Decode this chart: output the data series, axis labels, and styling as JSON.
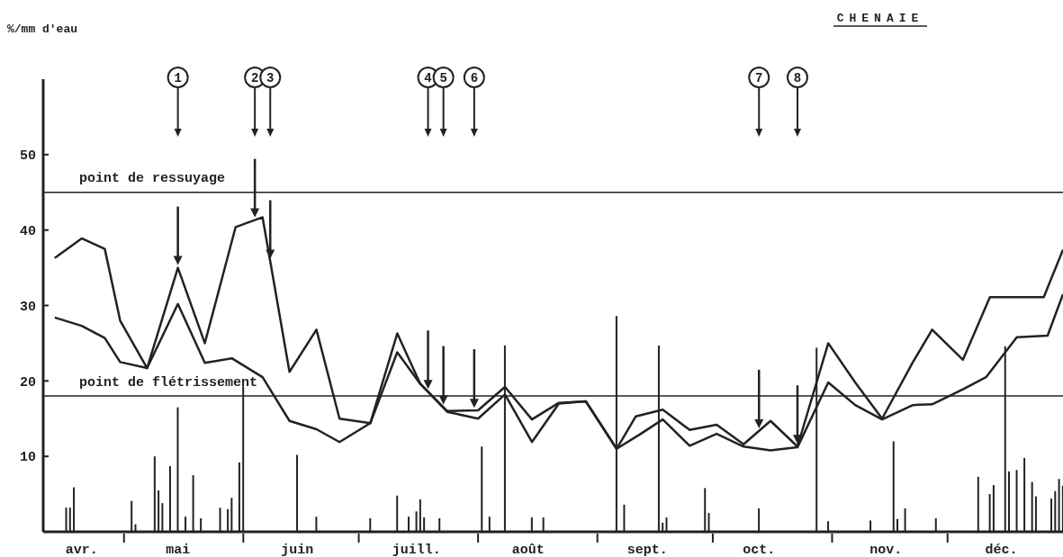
{
  "chart_data": {
    "type": "line",
    "title": "CHENAIE",
    "ylabel": "%/mm d'eau",
    "xlim": [
      "--04-10",
      "--12-31"
    ],
    "ylim": [
      0,
      60
    ],
    "yticks": [
      10,
      20,
      30,
      40,
      50
    ],
    "xticks": [
      {
        "value": "--04-20",
        "label": "avr."
      },
      {
        "value": "--05-01",
        "label": null
      },
      {
        "value": "--05-15",
        "label": "mai"
      },
      {
        "value": "--06-01",
        "label": null
      },
      {
        "value": "--06-15",
        "label": "juin"
      },
      {
        "value": "--07-01",
        "label": null
      },
      {
        "value": "--07-16",
        "label": "juill."
      },
      {
        "value": "--08-01",
        "label": null
      },
      {
        "value": "--08-14",
        "label": "août"
      },
      {
        "value": "--09-01",
        "label": null
      },
      {
        "value": "--09-14",
        "label": "sept."
      },
      {
        "value": "--10-01",
        "label": null
      },
      {
        "value": "--10-13",
        "label": "oct."
      },
      {
        "value": "--11-01",
        "label": null
      },
      {
        "value": "--11-15",
        "label": "nov."
      },
      {
        "value": "--12-01",
        "label": null
      },
      {
        "value": "--12-15",
        "label": "déc."
      }
    ],
    "ref_lines": [
      {
        "axis": "y",
        "value": 45,
        "label": "point de ressuyage",
        "color": "#222222"
      },
      {
        "axis": "y",
        "value": 18,
        "label": "point de flétrissement",
        "color": "#222222"
      }
    ],
    "annotations": [
      {
        "text": "1",
        "x": "--05-15"
      },
      {
        "text": "2",
        "x": "--06-04"
      },
      {
        "text": "3",
        "x": "--06-08"
      },
      {
        "text": "4",
        "x": "--07-19"
      },
      {
        "text": "5",
        "x": "--07-23"
      },
      {
        "text": "6",
        "x": "--07-31"
      },
      {
        "text": "7",
        "x": "--10-13"
      },
      {
        "text": "8",
        "x": "--10-23"
      }
    ],
    "series": [
      {
        "color": "#222222",
        "x": [
          "--04-13",
          "--04-20",
          "--04-26",
          "--04-30",
          "--05-07",
          "--05-15",
          "--05-22",
          "--05-30",
          "--06-06",
          "--06-13",
          "--06-20",
          "--06-26",
          "--07-04",
          "--07-11",
          "--07-17",
          "--07-24",
          "--08-01",
          "--08-08",
          "--08-15",
          "--08-22",
          "--08-29",
          "--09-06",
          "--09-11",
          "--09-18",
          "--09-25",
          "--10-02",
          "--10-09",
          "--10-16",
          "--10-23",
          "--10-31",
          "--11-07",
          "--11-14",
          "--11-22",
          "--11-27",
          "--12-05",
          "--12-12",
          "--12-26",
          "--12-31"
        ],
        "values": [
          36.3,
          38.9,
          37.5,
          28.0,
          21.7,
          35.0,
          25.0,
          40.4,
          41.7,
          21.2,
          26.8,
          15.0,
          14.4,
          26.3,
          19.6,
          16.0,
          16.1,
          19.2,
          14.9,
          17.1,
          17.3,
          11.0,
          15.3,
          16.2,
          13.5,
          14.2,
          11.6,
          14.7,
          11.3,
          25.0,
          19.8,
          15.0,
          22.5,
          26.8,
          22.8,
          31.1,
          31.1,
          37.4
        ]
      },
      {
        "color": "#222222",
        "x": [
          "--04-13",
          "--04-20",
          "--04-26",
          "--04-30",
          "--05-07",
          "--05-15",
          "--05-22",
          "--05-29",
          "--06-06",
          "--06-13",
          "--06-20",
          "--06-26",
          "--07-04",
          "--07-11",
          "--07-17",
          "--07-24",
          "--08-01",
          "--08-08",
          "--08-15",
          "--08-22",
          "--08-29",
          "--09-06",
          "--09-12",
          "--09-18",
          "--09-25",
          "--10-02",
          "--10-09",
          "--10-16",
          "--10-23",
          "--10-31",
          "--11-07",
          "--11-14",
          "--11-22",
          "--11-27",
          "--12-05",
          "--12-11",
          "--12-19",
          "--12-27",
          "--12-31"
        ],
        "values": [
          28.4,
          27.3,
          25.7,
          22.5,
          21.7,
          30.2,
          22.4,
          23.0,
          20.5,
          14.7,
          13.6,
          11.9,
          14.4,
          23.8,
          19.6,
          15.9,
          15.0,
          18.2,
          11.9,
          17.0,
          17.3,
          11.0,
          12.9,
          14.9,
          11.4,
          13.0,
          11.3,
          10.8,
          11.2,
          19.8,
          16.8,
          14.9,
          16.8,
          16.9,
          18.9,
          20.5,
          25.8,
          26.0,
          31.5
        ]
      },
      {
        "type": "bar",
        "color": "#222222",
        "x": [
          "--04-16",
          "--04-17",
          "--04-18",
          "--05-03",
          "--05-04",
          "--05-09",
          "--05-10",
          "--05-11",
          "--05-13",
          "--05-15",
          "--05-17",
          "--05-19",
          "--05-21",
          "--05-26",
          "--05-28",
          "--05-29",
          "--05-31",
          "--06-01",
          "--06-15",
          "--06-20",
          "--07-04",
          "--07-11",
          "--07-14",
          "--07-16",
          "--07-17",
          "--07-18",
          "--07-22",
          "--08-02",
          "--08-04",
          "--08-08",
          "--08-15",
          "--08-18",
          "--09-06",
          "--09-08",
          "--09-17",
          "--09-18",
          "--09-19",
          "--09-29",
          "--09-30",
          "--10-13",
          "--10-28",
          "--10-31",
          "--11-11",
          "--11-17",
          "--11-18",
          "--11-20",
          "--11-28",
          "--12-09",
          "--12-12",
          "--12-13",
          "--12-16",
          "--12-17",
          "--12-19",
          "--12-21",
          "--12-23",
          "--12-24",
          "--12-28",
          "--12-29",
          "--12-30",
          "--12-31"
        ],
        "values": [
          3.2,
          3.2,
          5.9,
          4.1,
          1.0,
          10.0,
          5.5,
          3.8,
          8.7,
          16.5,
          2.0,
          7.5,
          1.8,
          3.2,
          3.0,
          4.5,
          9.2,
          19.3,
          10.2,
          2.0,
          1.8,
          4.8,
          2.0,
          2.7,
          4.3,
          1.9,
          1.8,
          11.3,
          2.0,
          24.7,
          1.9,
          1.9,
          28.6,
          3.6,
          24.7,
          1.2,
          1.9,
          5.8,
          2.5,
          3.1,
          24.4,
          1.4,
          1.5,
          12.0,
          1.7,
          3.1,
          1.8,
          7.3,
          5.0,
          6.2,
          24.6,
          8.0,
          8.2,
          9.8,
          6.6,
          4.7,
          4.4,
          5.4,
          7.0,
          6.1
        ]
      }
    ]
  }
}
